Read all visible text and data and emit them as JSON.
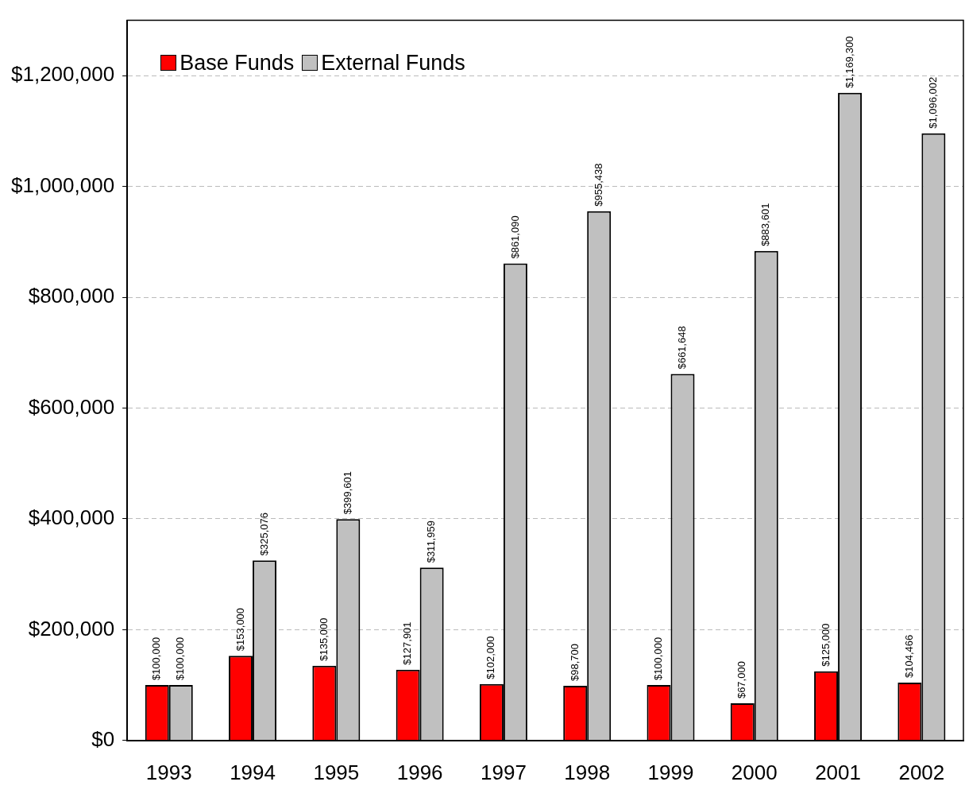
{
  "chart_data": {
    "type": "bar",
    "categories": [
      "1993",
      "1994",
      "1995",
      "1996",
      "1997",
      "1998",
      "1999",
      "2000",
      "2001",
      "2002"
    ],
    "series": [
      {
        "name": "Base Funds",
        "color": "#ff0000",
        "values": [
          100000,
          153000,
          135000,
          127901,
          102000,
          98700,
          100000,
          67000,
          125000,
          104466
        ],
        "value_labels": [
          "$100,000",
          "$153,000",
          "$135,000",
          "$127,901",
          "$102,000",
          "$98,700",
          "$100,000",
          "$67,000",
          "$125,000",
          "$104,466"
        ]
      },
      {
        "name": "External Funds",
        "color": "#c0c0c0",
        "values": [
          100000,
          325076,
          399601,
          311959,
          861090,
          955438,
          661648,
          883601,
          1169300,
          1096002
        ],
        "value_labels": [
          "$100,000",
          "$325,076",
          "$399,601",
          "$311,959",
          "$861,090",
          "$955,438",
          "$661,648",
          "$883,601",
          "$1,169,300",
          "$1,096,002"
        ]
      }
    ],
    "ylim": [
      0,
      1300000
    ],
    "yticks": [
      {
        "value": 0,
        "label": "$0"
      },
      {
        "value": 200000,
        "label": "$200,000"
      },
      {
        "value": 400000,
        "label": "$400,000"
      },
      {
        "value": 600000,
        "label": "$600,000"
      },
      {
        "value": 800000,
        "label": "$800,000"
      },
      {
        "value": 1000000,
        "label": "$1,000,000"
      },
      {
        "value": 1200000,
        "label": "$1,200,000"
      }
    ],
    "grid": "y",
    "legend": "top left"
  }
}
